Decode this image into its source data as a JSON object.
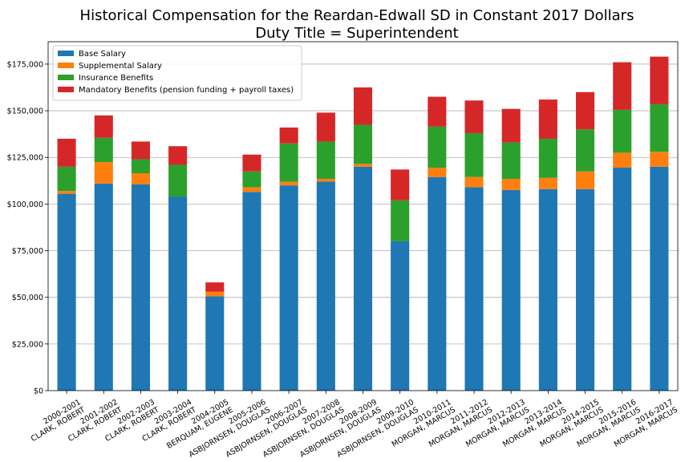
{
  "chart_data": {
    "type": "bar",
    "stacked": true,
    "title": "Historical Compensation for the Reardan-Edwall SD in Constant 2017 Dollars",
    "subtitle": "Duty Title = Superintendent",
    "xlabel": "",
    "ylabel": "",
    "ylim": [
      0,
      187000
    ],
    "yticks": [
      0,
      25000,
      50000,
      75000,
      100000,
      125000,
      150000,
      175000
    ],
    "ytick_labels": [
      "$0",
      "$25,000",
      "$50,000",
      "$75,000",
      "$100,000",
      "$125,000",
      "$150,000",
      "$175,000"
    ],
    "grid": "horizontal",
    "legend_position": "top-left",
    "categories": [
      [
        "2000-2001",
        "CLARK, ROBERT"
      ],
      [
        "2001-2002",
        "CLARK, ROBERT"
      ],
      [
        "2002-2003",
        "CLARK, ROBERT"
      ],
      [
        "2003-2004",
        "CLARK, ROBERT"
      ],
      [
        "2004-2005",
        "BERQUAM, EUGENE"
      ],
      [
        "2005-2006",
        "ASBJORNSEN, DOUGLAS"
      ],
      [
        "2006-2007",
        "ASBJORNSEN, DOUGLAS"
      ],
      [
        "2007-2008",
        "ASBJORNSEN, DOUGLAS"
      ],
      [
        "2008-2009",
        "ASBJORNSEN, DOUGLAS"
      ],
      [
        "2009-2010",
        "ASBJORNSEN, DOUGLAS"
      ],
      [
        "2010-2011",
        "MORGAN, MARCUS"
      ],
      [
        "2011-2012",
        "MORGAN, MARCUS"
      ],
      [
        "2012-2013",
        "MORGAN, MARCUS"
      ],
      [
        "2013-2014",
        "MORGAN, MARCUS"
      ],
      [
        "2014-2015",
        "MORGAN, MARCUS"
      ],
      [
        "2015-2016",
        "MORGAN, MARCUS"
      ],
      [
        "2016-2017",
        "MORGAN, MARCUS"
      ]
    ],
    "series": [
      {
        "name": "Base Salary",
        "color": "#1f77b4",
        "values": [
          105500,
          111000,
          110500,
          104000,
          50500,
          106500,
          110000,
          112000,
          120000,
          80000,
          114500,
          109000,
          107500,
          108000,
          108000,
          119500,
          120000
        ]
      },
      {
        "name": "Supplemental Salary",
        "color": "#ff7f0e",
        "values": [
          1500,
          11500,
          6000,
          0,
          2500,
          2500,
          2000,
          1500,
          1500,
          0,
          5000,
          5500,
          6000,
          6000,
          9500,
          8000,
          8000
        ]
      },
      {
        "name": "Insurance Benefits",
        "color": "#2ca02c",
        "values": [
          13000,
          13000,
          7500,
          17000,
          0,
          8500,
          20500,
          20000,
          21000,
          22000,
          22000,
          23500,
          19500,
          21000,
          22500,
          23000,
          25500
        ]
      },
      {
        "name": "Mandatory Benefits (pension funding + payroll taxes)",
        "color": "#d62728",
        "values": [
          15000,
          12000,
          9500,
          10000,
          5000,
          9000,
          8500,
          15500,
          20000,
          16500,
          16000,
          17500,
          18000,
          21000,
          20000,
          25500,
          25500
        ]
      }
    ]
  }
}
